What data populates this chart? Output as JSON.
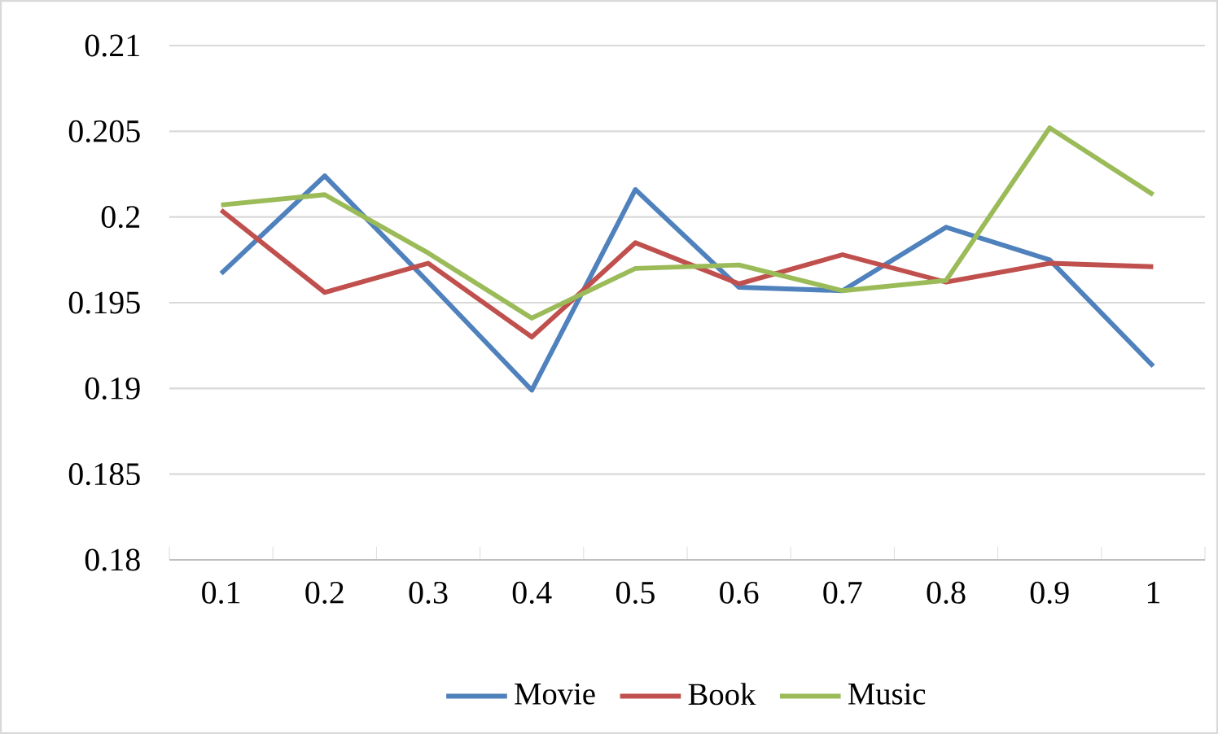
{
  "chart_data": {
    "type": "line",
    "categories": [
      "0.1",
      "0.2",
      "0.3",
      "0.4",
      "0.5",
      "0.6",
      "0.7",
      "0.8",
      "0.9",
      "1"
    ],
    "series": [
      {
        "name": "Movie",
        "color": "#4f81bd",
        "values": [
          0.1967,
          0.2024,
          0.1962,
          0.1899,
          0.2016,
          0.1959,
          0.1957,
          0.1994,
          0.1975,
          0.1913
        ]
      },
      {
        "name": "Book",
        "color": "#c0504d",
        "values": [
          0.2004,
          0.1956,
          0.1973,
          0.193,
          0.1985,
          0.1961,
          0.1978,
          0.1962,
          0.1973,
          0.1971
        ]
      },
      {
        "name": "Music",
        "color": "#9bbb59",
        "values": [
          0.2007,
          0.2013,
          0.1979,
          0.1941,
          0.197,
          0.1972,
          0.1957,
          0.1963,
          0.2052,
          0.2013
        ]
      }
    ],
    "ylim": [
      0.18,
      0.21
    ],
    "yticks": [
      0.18,
      0.185,
      0.19,
      0.195,
      0.2,
      0.205,
      0.21
    ],
    "grid": "y",
    "legend": "bottom",
    "marker": "none",
    "line_style": "solid"
  }
}
